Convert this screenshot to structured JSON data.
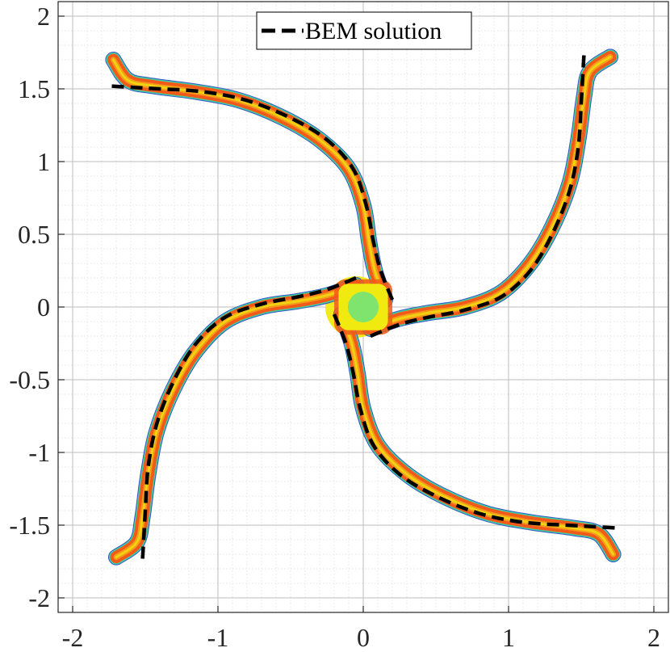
{
  "chart_data": {
    "type": "scatter",
    "title": "",
    "xlabel": "",
    "ylabel": "",
    "xlim": [
      -2.1,
      2.1
    ],
    "ylim": [
      -2.1,
      2.1
    ],
    "xticks": [
      -2,
      -1,
      0,
      1,
      2
    ],
    "yticks": [
      -2,
      -1.5,
      -1,
      -0.5,
      0,
      0.5,
      1,
      1.5,
      2
    ],
    "xtick_labels": [
      "-2",
      "-1",
      "0",
      "1",
      "2"
    ],
    "ytick_labels": [
      "-2",
      "-1.5",
      "-1",
      "-0.5",
      "0",
      "0.5",
      "1",
      "1.5",
      "2"
    ],
    "grid": true,
    "minor_grid": true,
    "legend": {
      "position": "top-center",
      "entries": [
        "BEM solution"
      ]
    },
    "field_colors": {
      "outer": "#f25a1a",
      "mid": "#f5a11a",
      "inner": "#f0ea10",
      "core": "#40e0a0",
      "edge": "#2040c0"
    },
    "series": [
      {
        "name": "BEM solution",
        "style": "dashed",
        "color": "#000000",
        "arms": [
          [
            [
              0.2,
              0.05
            ],
            [
              0.12,
              0.25
            ],
            [
              0.07,
              0.45
            ],
            [
              0.02,
              0.7
            ],
            [
              -0.07,
              0.95
            ],
            [
              -0.25,
              1.15
            ],
            [
              -0.5,
              1.3
            ],
            [
              -0.8,
              1.42
            ],
            [
              -1.1,
              1.48
            ],
            [
              -1.4,
              1.5
            ],
            [
              -1.58,
              1.51
            ],
            [
              -1.75,
              1.52
            ]
          ],
          [
            [
              -0.05,
              0.2
            ],
            [
              -0.25,
              0.12
            ],
            [
              -0.45,
              0.07
            ],
            [
              -0.7,
              0.02
            ],
            [
              -0.95,
              -0.07
            ],
            [
              -1.15,
              -0.25
            ],
            [
              -1.3,
              -0.5
            ],
            [
              -1.42,
              -0.8
            ],
            [
              -1.48,
              -1.1
            ],
            [
              -1.5,
              -1.4
            ],
            [
              -1.51,
              -1.58
            ],
            [
              -1.52,
              -1.75
            ]
          ],
          [
            [
              -0.2,
              -0.05
            ],
            [
              -0.12,
              -0.25
            ],
            [
              -0.07,
              -0.45
            ],
            [
              -0.02,
              -0.7
            ],
            [
              0.07,
              -0.95
            ],
            [
              0.25,
              -1.15
            ],
            [
              0.5,
              -1.3
            ],
            [
              0.8,
              -1.42
            ],
            [
              1.1,
              -1.48
            ],
            [
              1.4,
              -1.5
            ],
            [
              1.58,
              -1.51
            ],
            [
              1.75,
              -1.52
            ]
          ],
          [
            [
              0.05,
              -0.2
            ],
            [
              0.25,
              -0.12
            ],
            [
              0.45,
              -0.07
            ],
            [
              0.7,
              -0.02
            ],
            [
              0.95,
              0.07
            ],
            [
              1.15,
              0.25
            ],
            [
              1.3,
              0.5
            ],
            [
              1.42,
              0.8
            ],
            [
              1.48,
              1.1
            ],
            [
              1.5,
              1.4
            ],
            [
              1.51,
              1.58
            ],
            [
              1.52,
              1.75
            ]
          ]
        ]
      }
    ],
    "field": {
      "arms": [
        [
          [
            0.15,
            0.05
          ],
          [
            0.08,
            0.25
          ],
          [
            0.04,
            0.45
          ],
          [
            0.0,
            0.7
          ],
          [
            -0.1,
            0.95
          ],
          [
            -0.3,
            1.15
          ],
          [
            -0.55,
            1.3
          ],
          [
            -0.85,
            1.42
          ],
          [
            -1.15,
            1.48
          ],
          [
            -1.45,
            1.52
          ],
          [
            -1.62,
            1.56
          ],
          [
            -1.72,
            1.7
          ]
        ],
        [
          [
            -0.05,
            0.15
          ],
          [
            -0.25,
            0.08
          ],
          [
            -0.45,
            0.04
          ],
          [
            -0.7,
            0.0
          ],
          [
            -0.95,
            -0.1
          ],
          [
            -1.15,
            -0.3
          ],
          [
            -1.3,
            -0.55
          ],
          [
            -1.42,
            -0.85
          ],
          [
            -1.48,
            -1.15
          ],
          [
            -1.52,
            -1.45
          ],
          [
            -1.56,
            -1.62
          ],
          [
            -1.7,
            -1.72
          ]
        ],
        [
          [
            -0.15,
            -0.05
          ],
          [
            -0.08,
            -0.25
          ],
          [
            -0.04,
            -0.45
          ],
          [
            0.0,
            -0.7
          ],
          [
            0.1,
            -0.95
          ],
          [
            0.3,
            -1.15
          ],
          [
            0.55,
            -1.3
          ],
          [
            0.85,
            -1.42
          ],
          [
            1.15,
            -1.48
          ],
          [
            1.45,
            -1.52
          ],
          [
            1.62,
            -1.56
          ],
          [
            1.72,
            -1.7
          ]
        ],
        [
          [
            0.05,
            -0.15
          ],
          [
            0.25,
            -0.08
          ],
          [
            0.45,
            -0.04
          ],
          [
            0.7,
            0.0
          ],
          [
            0.95,
            0.1
          ],
          [
            1.15,
            0.3
          ],
          [
            1.3,
            0.55
          ],
          [
            1.42,
            0.85
          ],
          [
            1.48,
            1.15
          ],
          [
            1.52,
            1.45
          ],
          [
            1.56,
            1.62
          ],
          [
            1.7,
            1.72
          ]
        ]
      ]
    }
  }
}
